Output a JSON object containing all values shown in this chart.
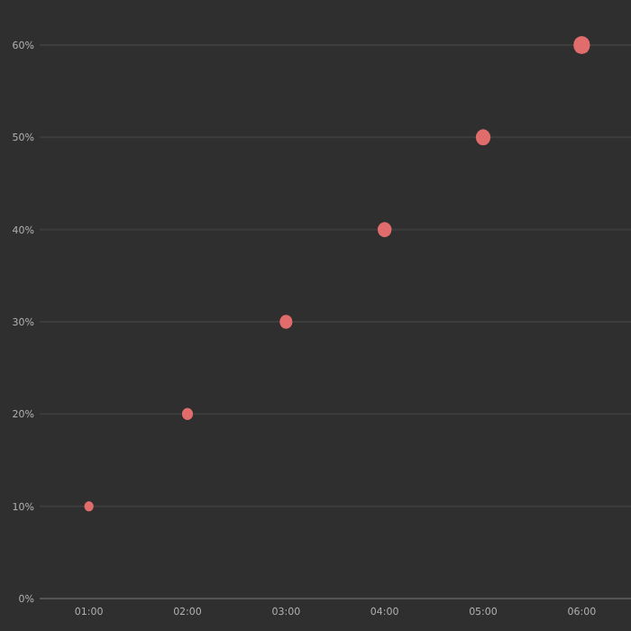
{
  "chart_data": {
    "type": "bubble",
    "x": [
      1,
      2,
      3,
      4,
      5,
      6
    ],
    "series": [
      {
        "color": "#e06c6c",
        "values": [
          10,
          20,
          30,
          40,
          50,
          60
        ],
        "sizes": [
          0.31,
          0.44,
          0.6,
          0.71,
          0.79,
          1
        ]
      }
    ],
    "xlim": [
      0.5,
      6.5
    ],
    "ylim": [
      0,
      60
    ],
    "xticks": [
      {
        "value": 1,
        "label": "01:00"
      },
      {
        "value": 2,
        "label": "02:00"
      },
      {
        "value": 3,
        "label": "03:00"
      },
      {
        "value": 4,
        "label": "04:00"
      },
      {
        "value": 5,
        "label": "05:00"
      },
      {
        "value": 6,
        "label": "06:00"
      }
    ],
    "yticks": [
      {
        "value": 0,
        "label": "0%"
      },
      {
        "value": 10,
        "label": "10%"
      },
      {
        "value": 20,
        "label": "20%"
      },
      {
        "value": 30,
        "label": "30%"
      },
      {
        "value": 40,
        "label": "40%"
      },
      {
        "value": 50,
        "label": "50%"
      },
      {
        "value": 60,
        "label": "60%"
      }
    ],
    "grid": "y"
  }
}
